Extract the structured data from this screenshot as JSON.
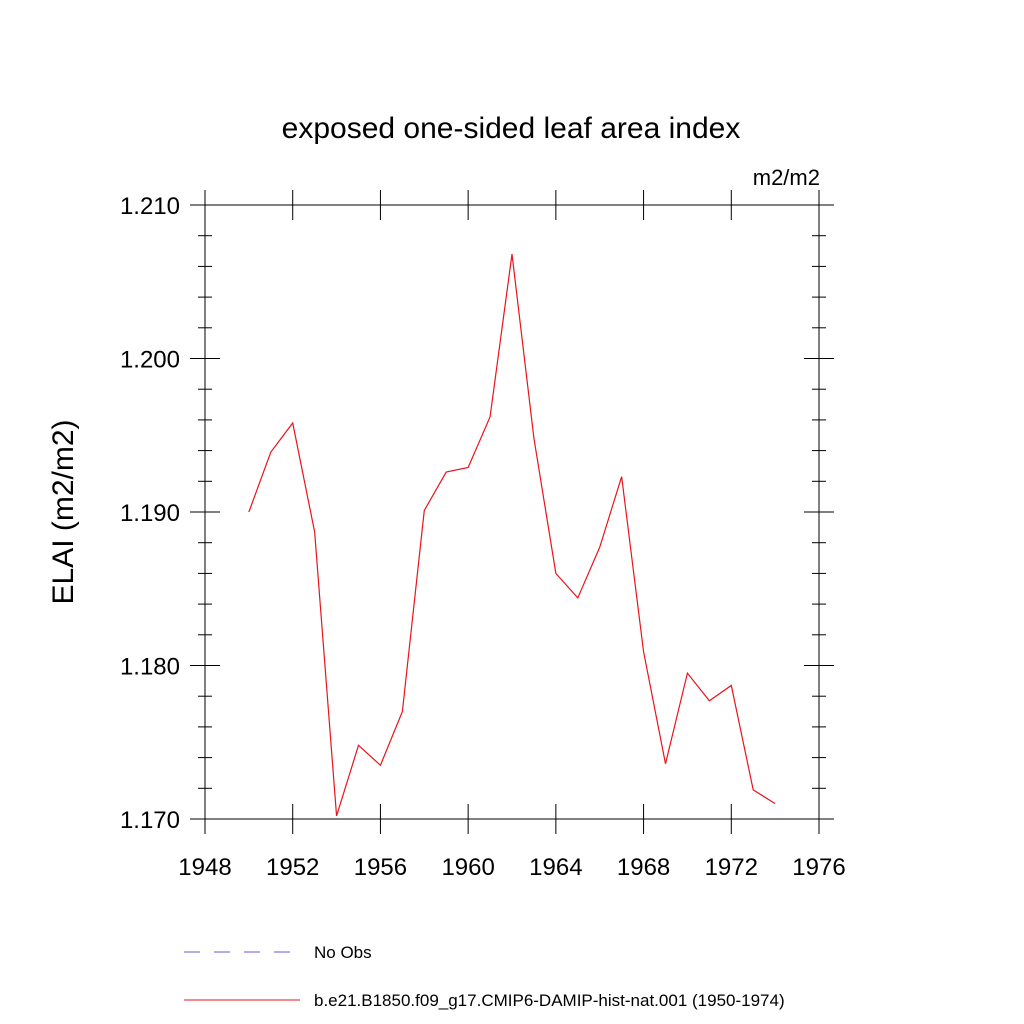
{
  "chart_data": {
    "type": "line",
    "title": "exposed one-sided leaf area index",
    "units": "m2/m2",
    "ylabel": "ELAI  (m2/m2)",
    "xlabel": "",
    "xlim": [
      1948,
      1976
    ],
    "ylim": [
      1.17,
      1.21
    ],
    "xticks": [
      1948,
      1952,
      1956,
      1960,
      1964,
      1968,
      1972,
      1976
    ],
    "xtick_labels": [
      "1948",
      "1952",
      "1956",
      "1960",
      "1964",
      "1968",
      "1972",
      "1976"
    ],
    "yticks": [
      1.17,
      1.18,
      1.19,
      1.2,
      1.21
    ],
    "ytick_labels": [
      "1.170",
      "1.180",
      "1.190",
      "1.200",
      "1.210"
    ],
    "grid": false,
    "legend_position": "bottom",
    "series": [
      {
        "name": "b.e21.B1850.f09_g17.CMIP6-DAMIP-hist-nat.001 (1950-1974)",
        "color": "#e8141c",
        "style": "solid",
        "x": [
          1950,
          1951,
          1952,
          1953,
          1954,
          1955,
          1956,
          1957,
          1958,
          1959,
          1960,
          1961,
          1962,
          1963,
          1964,
          1965,
          1966,
          1967,
          1968,
          1969,
          1970,
          1971,
          1972,
          1973,
          1974
        ],
        "y": [
          1.19,
          1.1939,
          1.1958,
          1.1887,
          1.1702,
          1.1748,
          1.1735,
          1.177,
          1.1901,
          1.1926,
          1.1929,
          1.1962,
          1.2068,
          1.1948,
          1.186,
          1.1844,
          1.1877,
          1.1923,
          1.1809,
          1.1736,
          1.1795,
          1.1777,
          1.1787,
          1.1719,
          1.171
        ]
      }
    ],
    "legend": [
      {
        "label": "No Obs",
        "color": "#6a5acd",
        "style": "dashed"
      },
      {
        "label": "b.e21.B1850.f09_g17.CMIP6-DAMIP-hist-nat.001 (1950-1974)",
        "color": "#e8141c",
        "style": "solid"
      }
    ]
  }
}
